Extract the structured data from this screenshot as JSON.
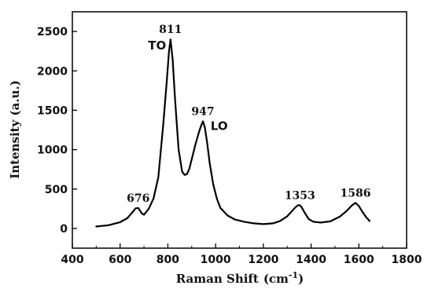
{
  "chart_data": {
    "type": "line",
    "xlabel_main": "Raman Shift",
    "xlabel_unit_open": "(cm",
    "xlabel_unit_sup": "-1",
    "xlabel_unit_close": ")",
    "ylabel": "Intensity (a.u.)",
    "xlim": [
      400,
      1800
    ],
    "ylim": [
      -250,
      2750
    ],
    "xticks": [
      400,
      600,
      800,
      1000,
      1200,
      1400,
      1600,
      1800
    ],
    "yticks": [
      0,
      500,
      1000,
      1500,
      2000,
      2500
    ],
    "grid": false,
    "line_color": "#000000",
    "series": [
      {
        "x": [
          500,
          550,
          600,
          630,
          650,
          665,
          676,
          690,
          700,
          720,
          740,
          760,
          780,
          795,
          805,
          811,
          820,
          830,
          845,
          860,
          870,
          880,
          890,
          900,
          915,
          930,
          940,
          947,
          955,
          965,
          975,
          990,
          1005,
          1020,
          1050,
          1080,
          1120,
          1160,
          1200,
          1240,
          1270,
          1300,
          1320,
          1335,
          1345,
          1353,
          1360,
          1375,
          1390,
          1410,
          1440,
          1480,
          1520,
          1550,
          1570,
          1586,
          1600,
          1615,
          1630,
          1645
        ],
        "y": [
          25,
          40,
          80,
          130,
          200,
          255,
          260,
          195,
          175,
          250,
          380,
          650,
          1300,
          1850,
          2250,
          2400,
          2150,
          1650,
          1000,
          720,
          680,
          690,
          760,
          880,
          1060,
          1220,
          1310,
          1360,
          1280,
          1080,
          830,
          560,
          380,
          260,
          165,
          115,
          85,
          65,
          55,
          65,
          95,
          155,
          220,
          270,
          295,
          295,
          270,
          190,
          120,
          85,
          75,
          90,
          150,
          225,
          290,
          325,
          285,
          210,
          145,
          95
        ]
      }
    ],
    "peak_annotations": [
      {
        "x": 676,
        "y": 260,
        "label": "676"
      },
      {
        "x": 811,
        "y": 2400,
        "label": "811"
      },
      {
        "x": 947,
        "y": 1360,
        "label": "947"
      },
      {
        "x": 1353,
        "y": 295,
        "label": "1353"
      },
      {
        "x": 1586,
        "y": 325,
        "label": "1586"
      }
    ],
    "mode_annotations": [
      {
        "x": 755,
        "y": 2270,
        "label": "TO"
      },
      {
        "x": 1015,
        "y": 1250,
        "label": "LO"
      }
    ]
  }
}
